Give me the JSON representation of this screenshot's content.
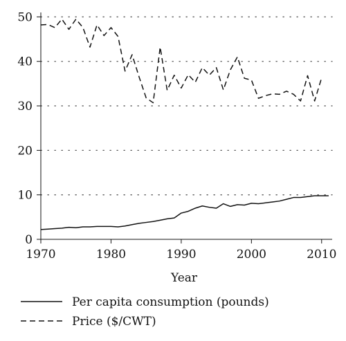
{
  "chart_data": {
    "type": "line",
    "title": "",
    "xlabel": "Year",
    "ylabel": "",
    "xlim": [
      1970,
      2011.5
    ],
    "ylim": [
      0,
      51
    ],
    "x_ticks": [
      1970,
      1980,
      1990,
      2000,
      2010
    ],
    "y_ticks": [
      0,
      10,
      20,
      30,
      40,
      50
    ],
    "grid": "horizontal dotted",
    "legend_position": "bottom-left",
    "x": [
      1970,
      1971,
      1972,
      1973,
      1974,
      1975,
      1976,
      1977,
      1978,
      1979,
      1980,
      1981,
      1982,
      1983,
      1984,
      1985,
      1986,
      1987,
      1988,
      1989,
      1990,
      1991,
      1992,
      1993,
      1994,
      1995,
      1996,
      1997,
      1998,
      1999,
      2000,
      2001,
      2002,
      2003,
      2004,
      2005,
      2006,
      2007,
      2008,
      2009,
      2010,
      2011
    ],
    "series": [
      {
        "name": "Per capita consumption (pounds)",
        "style": "solid",
        "color": "#111111",
        "values": [
          2.2,
          2.3,
          2.4,
          2.5,
          2.7,
          2.6,
          2.8,
          2.8,
          2.9,
          2.9,
          2.9,
          2.8,
          3.0,
          3.3,
          3.6,
          3.8,
          4.0,
          4.3,
          4.6,
          4.8,
          5.9,
          6.3,
          7.0,
          7.5,
          7.2,
          7.0,
          8.0,
          7.4,
          7.8,
          7.7,
          8.1,
          8.0,
          8.2,
          8.4,
          8.6,
          9.0,
          9.4,
          9.4,
          9.6,
          9.8,
          9.8,
          9.8
        ]
      },
      {
        "name": "Price ($/CWT)",
        "style": "dashed",
        "color": "#111111",
        "values": [
          48.2,
          48.3,
          47.6,
          49.5,
          47.2,
          49.5,
          47.6,
          43.2,
          48.2,
          45.8,
          47.6,
          45.6,
          37.8,
          41.5,
          36.5,
          31.8,
          30.7,
          43.2,
          33.5,
          36.9,
          34.0,
          37.0,
          35.3,
          38.6,
          36.9,
          38.6,
          33.6,
          38.1,
          41.0,
          36.2,
          35.8,
          31.7,
          32.3,
          32.7,
          32.6,
          33.3,
          32.6,
          31.1,
          36.8,
          31.1,
          36.3,
          null
        ]
      }
    ]
  }
}
